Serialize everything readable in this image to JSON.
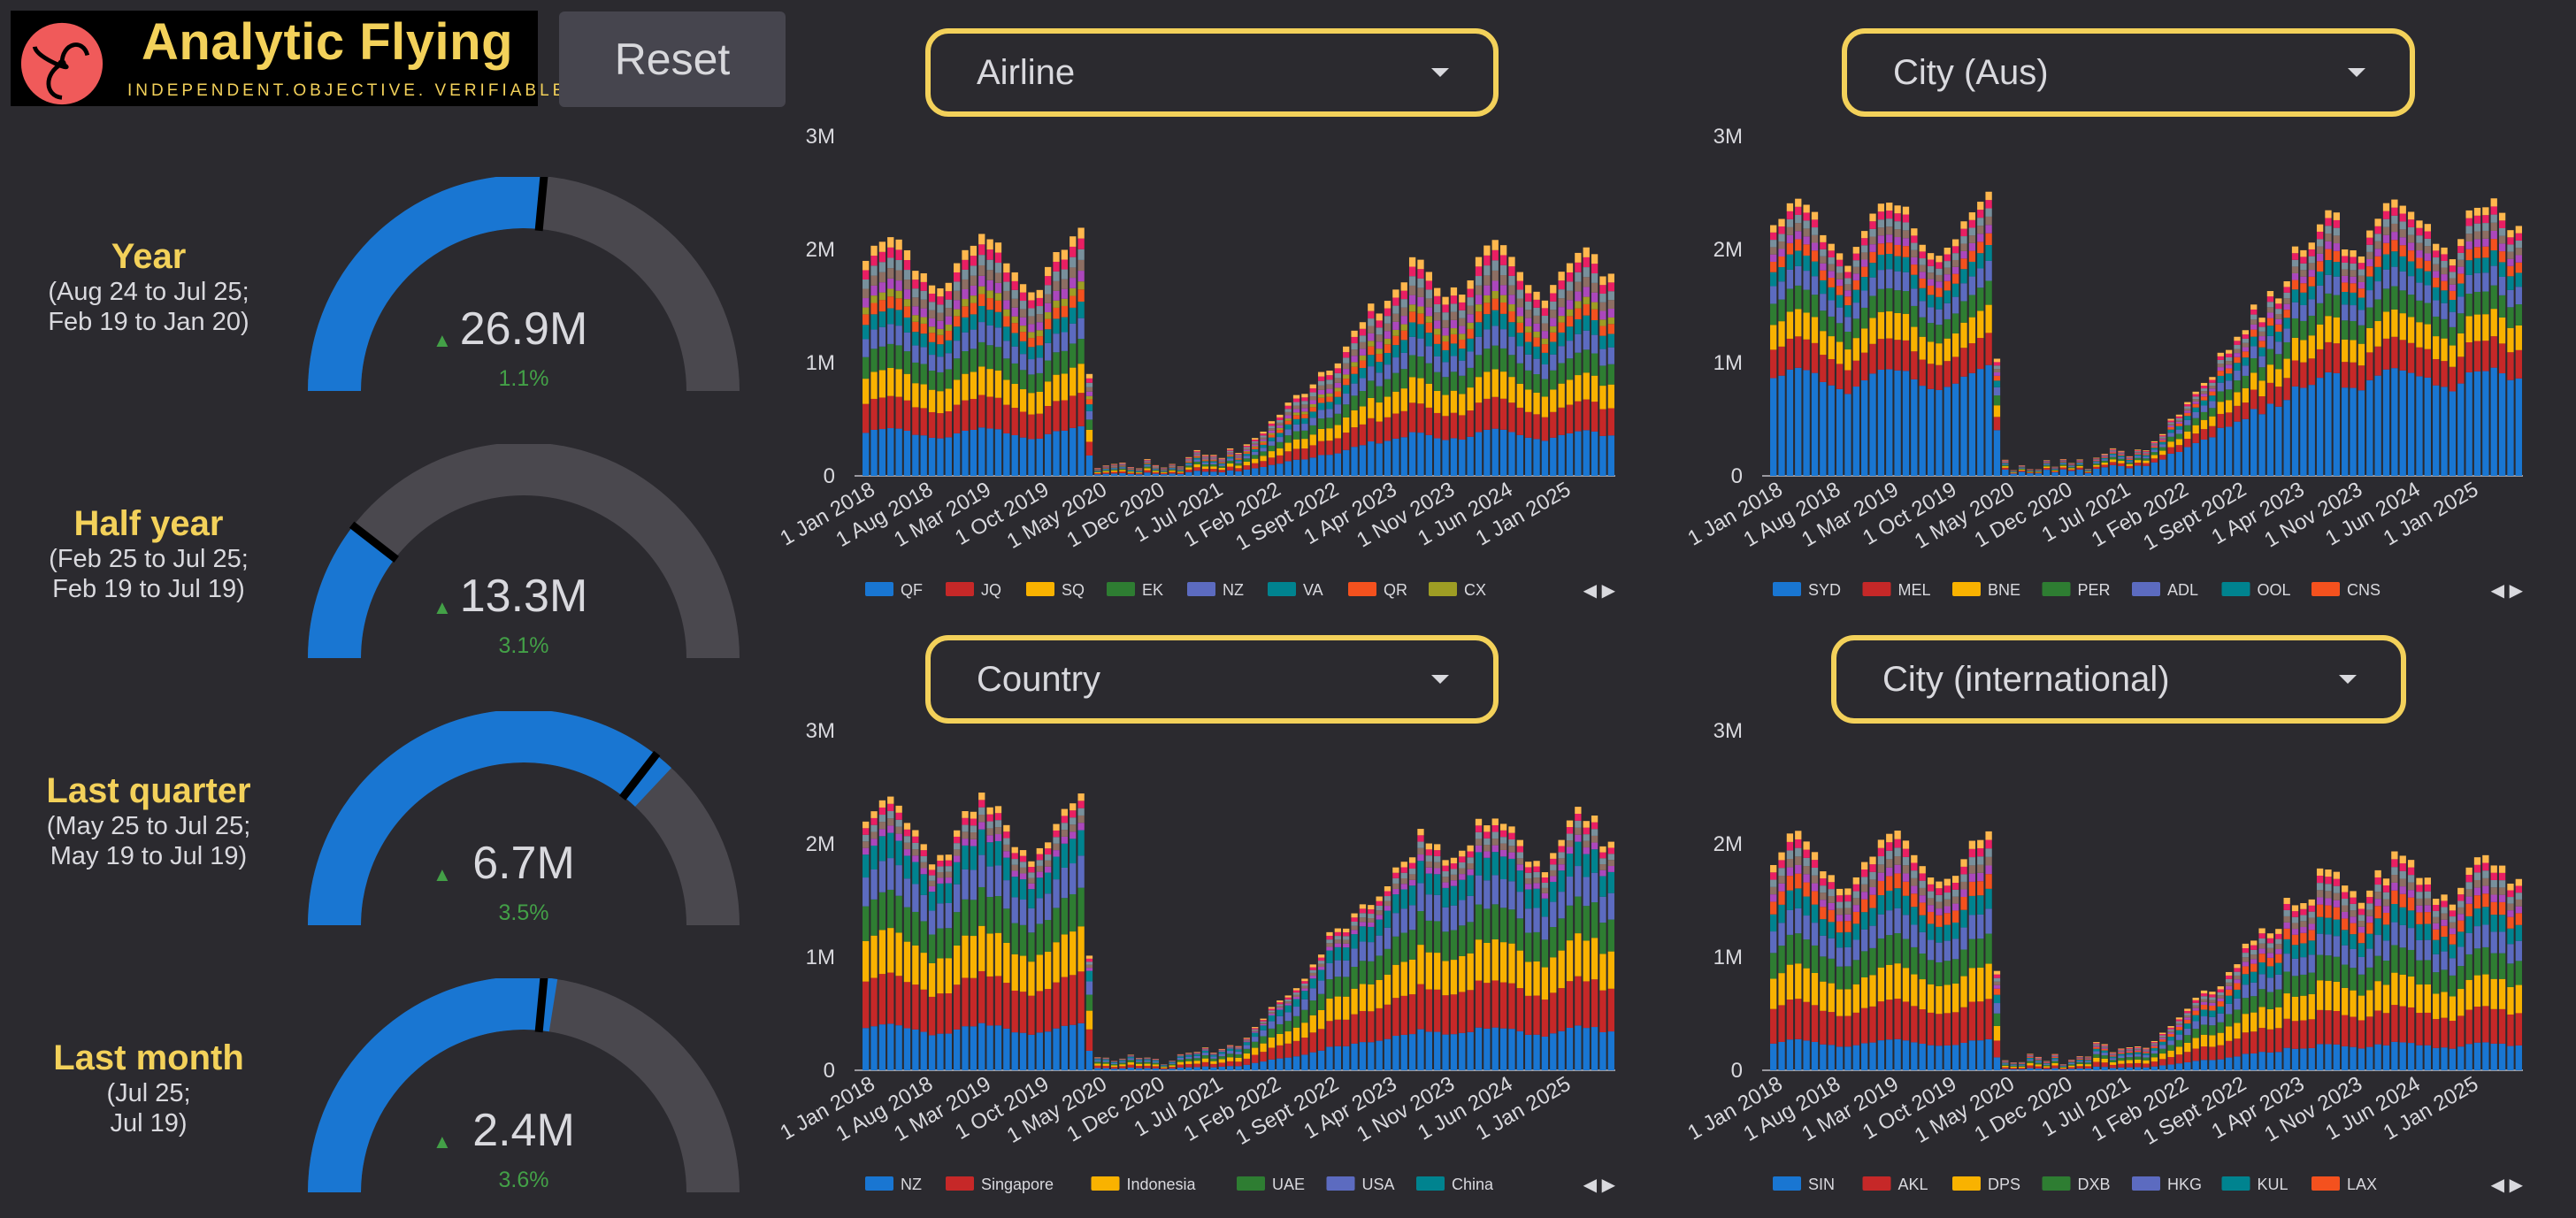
{
  "brand": {
    "name": "Analytic Flying",
    "tagline": "INDEPENDENT.OBJECTIVE. VERIFIABLE.",
    "logo_icon": "triskelion-logo"
  },
  "reset_label": "Reset",
  "colors": {
    "accent": "#f3d15a",
    "blue": "#1976d2",
    "grey": "#4a484e",
    "positive": "#43a047"
  },
  "kpis": [
    {
      "title": "Year",
      "subtitle_lines": [
        "(Aug 24 to Jul 25;",
        "Feb 19 to Jan 20)"
      ],
      "value": "26.9M",
      "change": "1.1%",
      "arrow": "up",
      "fill_fraction": 0.53,
      "marker_fraction": 0.53
    },
    {
      "title": "Half year",
      "subtitle_lines": [
        "(Feb 25 to Jul 25;",
        "Feb 19 to Jul 19)"
      ],
      "value": "13.3M",
      "change": "3.1%",
      "arrow": "up",
      "fill_fraction": 0.21,
      "marker_fraction": 0.21
    },
    {
      "title": "Last quarter",
      "subtitle_lines": [
        "(May 25 to Jul 25;",
        "May 19 to Jul 19)"
      ],
      "value": "6.7M",
      "change": "3.5%",
      "arrow": "up",
      "fill_fraction": 0.74,
      "marker_fraction": 0.71
    },
    {
      "title": "Last month",
      "subtitle_lines": [
        "(Jul 25;",
        "Jul 19)"
      ],
      "value": "2.4M",
      "change": "3.6%",
      "arrow": "up",
      "fill_fraction": 0.55,
      "marker_fraction": 0.53
    }
  ],
  "filters": [
    {
      "label": "Airline"
    },
    {
      "label": "City (Aus)"
    },
    {
      "label": "Country"
    },
    {
      "label": "City (international)"
    }
  ],
  "chart_data": [
    {
      "type": "bar",
      "stacked": true,
      "ylim": [
        0,
        3000000
      ],
      "yticks": [
        "0",
        "1M",
        "2M",
        "3M"
      ],
      "xticks": [
        "1 Jan 2018",
        "1 Aug 2018",
        "1 Mar 2019",
        "1 Oct 2019",
        "1 May 2020",
        "1 Dec 2020",
        "1 Jul 2021",
        "1 Feb 2022",
        "1 Sept 2022",
        "1 Apr 2023",
        "1 Nov 2023",
        "1 Jun 2024",
        "1 Jan 2025"
      ],
      "series": [
        {
          "name": "QF",
          "color": "#1976d2"
        },
        {
          "name": "JQ",
          "color": "#c62828"
        },
        {
          "name": "SQ",
          "color": "#f9b200"
        },
        {
          "name": "EK",
          "color": "#2e7d32"
        },
        {
          "name": "NZ",
          "color": "#5c6bc0"
        },
        {
          "name": "VA",
          "color": "#00838f"
        },
        {
          "name": "QR",
          "color": "#f4511e"
        },
        {
          "name": "CX",
          "color": "#9e9d24"
        }
      ],
      "totals_pre": 2.0,
      "totals_post": 1.9,
      "base_share": 0.2,
      "legend_arrows": "◀ ▶"
    },
    {
      "type": "bar",
      "stacked": true,
      "ylim": [
        0,
        3000000
      ],
      "yticks": [
        "0",
        "1M",
        "2M",
        "3M"
      ],
      "xticks": [
        "1 Jan 2018",
        "1 Aug 2018",
        "1 Mar 2019",
        "1 Oct 2019",
        "1 May 2020",
        "1 Dec 2020",
        "1 Jul 2021",
        "1 Feb 2022",
        "1 Sept 2022",
        "1 Apr 2023",
        "1 Nov 2023",
        "1 Jun 2024",
        "1 Jan 2025"
      ],
      "series": [
        {
          "name": "SYD",
          "color": "#1976d2"
        },
        {
          "name": "MEL",
          "color": "#c62828"
        },
        {
          "name": "BNE",
          "color": "#f9b200"
        },
        {
          "name": "PER",
          "color": "#2e7d32"
        },
        {
          "name": "ADL",
          "color": "#5c6bc0"
        },
        {
          "name": "OOL",
          "color": "#00838f"
        },
        {
          "name": "CNS",
          "color": "#f4511e"
        }
      ],
      "totals_pre": 2.3,
      "totals_post": 2.35,
      "base_share": 0.39,
      "legend_arrows": "◀ ▶"
    },
    {
      "type": "bar",
      "stacked": true,
      "ylim": [
        0,
        3000000
      ],
      "yticks": [
        "0",
        "1M",
        "2M",
        "3M"
      ],
      "xticks": [
        "1 Jan 2018",
        "1 Aug 2018",
        "1 Mar 2019",
        "1 Oct 2019",
        "1 May 2020",
        "1 Dec 2020",
        "1 Jul 2021",
        "1 Feb 2022",
        "1 Sept 2022",
        "1 Apr 2023",
        "1 Nov 2023",
        "1 Jun 2024",
        "1 Jan 2025"
      ],
      "series": [
        {
          "name": "NZ",
          "color": "#1976d2"
        },
        {
          "name": "Singapore",
          "color": "#c62828"
        },
        {
          "name": "Indonesia",
          "color": "#f9b200"
        },
        {
          "name": "UAE",
          "color": "#2e7d32"
        },
        {
          "name": "USA",
          "color": "#5c6bc0"
        },
        {
          "name": "China",
          "color": "#00838f"
        }
      ],
      "totals_pre": 2.25,
      "totals_post": 2.15,
      "base_share": 0.17,
      "legend_arrows": "◀ ▶"
    },
    {
      "type": "bar",
      "stacked": true,
      "ylim": [
        0,
        3000000
      ],
      "yticks": [
        "0",
        "1M",
        "2M",
        "3M"
      ],
      "xticks": [
        "1 Jan 2018",
        "1 Aug 2018",
        "1 Mar 2019",
        "1 Oct 2019",
        "1 May 2020",
        "1 Dec 2020",
        "1 Jul 2021",
        "1 Feb 2022",
        "1 Sept 2022",
        "1 Apr 2023",
        "1 Nov 2023",
        "1 Jun 2024",
        "1 Jan 2025"
      ],
      "series": [
        {
          "name": "SIN",
          "color": "#1976d2"
        },
        {
          "name": "AKL",
          "color": "#c62828"
        },
        {
          "name": "DPS",
          "color": "#f9b200"
        },
        {
          "name": "DXB",
          "color": "#2e7d32"
        },
        {
          "name": "HKG",
          "color": "#5c6bc0"
        },
        {
          "name": "KUL",
          "color": "#00838f"
        },
        {
          "name": "LAX",
          "color": "#f4511e"
        }
      ],
      "totals_pre": 1.95,
      "totals_post": 1.8,
      "base_share": 0.13,
      "legend_arrows": "◀ ▶"
    }
  ]
}
